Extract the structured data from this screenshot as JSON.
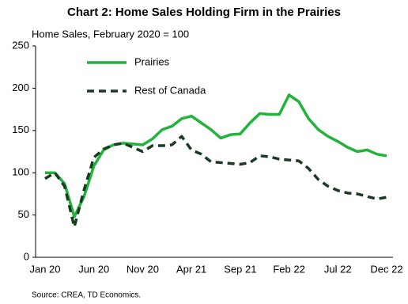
{
  "chart_data": {
    "type": "line",
    "title": "Chart 2: Home Sales Holding Firm in the Prairies",
    "subtitle": "Home Sales, February 2020 = 100",
    "source": "Source: CREA,  TD Economics.",
    "categories": [
      "Jan 20",
      null,
      null,
      null,
      null,
      "Jun 20",
      null,
      null,
      null,
      null,
      "Nov 20",
      null,
      null,
      null,
      null,
      "Apr 21",
      null,
      null,
      null,
      null,
      "Sep 21",
      null,
      null,
      null,
      null,
      "Feb 22",
      null,
      null,
      null,
      null,
      "Jul 22",
      null,
      null,
      null,
      null,
      "Dec 22"
    ],
    "series": [
      {
        "name": "Prairies",
        "color": "#22b43a",
        "dash": false,
        "values": [
          100,
          100,
          87,
          48,
          72,
          108,
          127,
          133,
          135,
          134,
          133,
          140,
          151,
          155,
          164,
          167,
          159,
          151,
          141,
          145,
          146,
          159,
          170,
          169,
          169,
          192,
          184,
          164,
          151,
          143,
          137,
          130,
          125,
          127,
          122,
          120
        ]
      },
      {
        "name": "Rest of Canada",
        "color": "#1a3a23",
        "dash": true,
        "values": [
          93,
          100,
          84,
          36,
          80,
          118,
          128,
          133,
          135,
          130,
          125,
          132,
          132,
          133,
          143,
          127,
          122,
          113,
          112,
          111,
          110,
          112,
          120,
          119,
          116,
          115,
          114,
          105,
          92,
          84,
          79,
          76,
          75,
          72,
          69,
          71
        ]
      }
    ],
    "ylim": [
      0,
      250
    ],
    "yticks": [
      0,
      50,
      100,
      150,
      200,
      250
    ],
    "grid": false
  }
}
